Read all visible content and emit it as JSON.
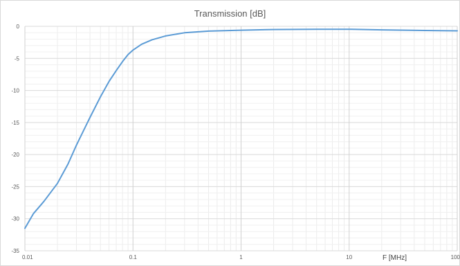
{
  "chart_data": {
    "type": "line",
    "title": "Transmission [dB]",
    "xlabel": "F [MHz]",
    "ylabel": "",
    "x_scale": "log",
    "xlim": [
      0.01,
      100
    ],
    "ylim": [
      -35,
      0
    ],
    "x_tick_labels": [
      "0.01",
      "0.1",
      "1",
      "10",
      "100"
    ],
    "y_tick_labels": [
      "0",
      "-5",
      "-10",
      "-15",
      "-20",
      "-25",
      "-30",
      "-35"
    ],
    "grid": true,
    "legend": "none",
    "series": [
      {
        "color": "#5b9bd5",
        "x": [
          0.01,
          0.012,
          0.015,
          0.02,
          0.025,
          0.03,
          0.04,
          0.05,
          0.06,
          0.07,
          0.08,
          0.09,
          0.1,
          0.12,
          0.15,
          0.2,
          0.3,
          0.5,
          1,
          2,
          5,
          10,
          20,
          50,
          100
        ],
        "y": [
          -31.5,
          -29.2,
          -27.3,
          -24.5,
          -21.5,
          -18.5,
          -14.2,
          -11.0,
          -8.6,
          -6.9,
          -5.5,
          -4.4,
          -3.7,
          -2.8,
          -2.1,
          -1.5,
          -1.0,
          -0.75,
          -0.6,
          -0.5,
          -0.45,
          -0.45,
          -0.55,
          -0.65,
          -0.7
        ]
      }
    ]
  }
}
